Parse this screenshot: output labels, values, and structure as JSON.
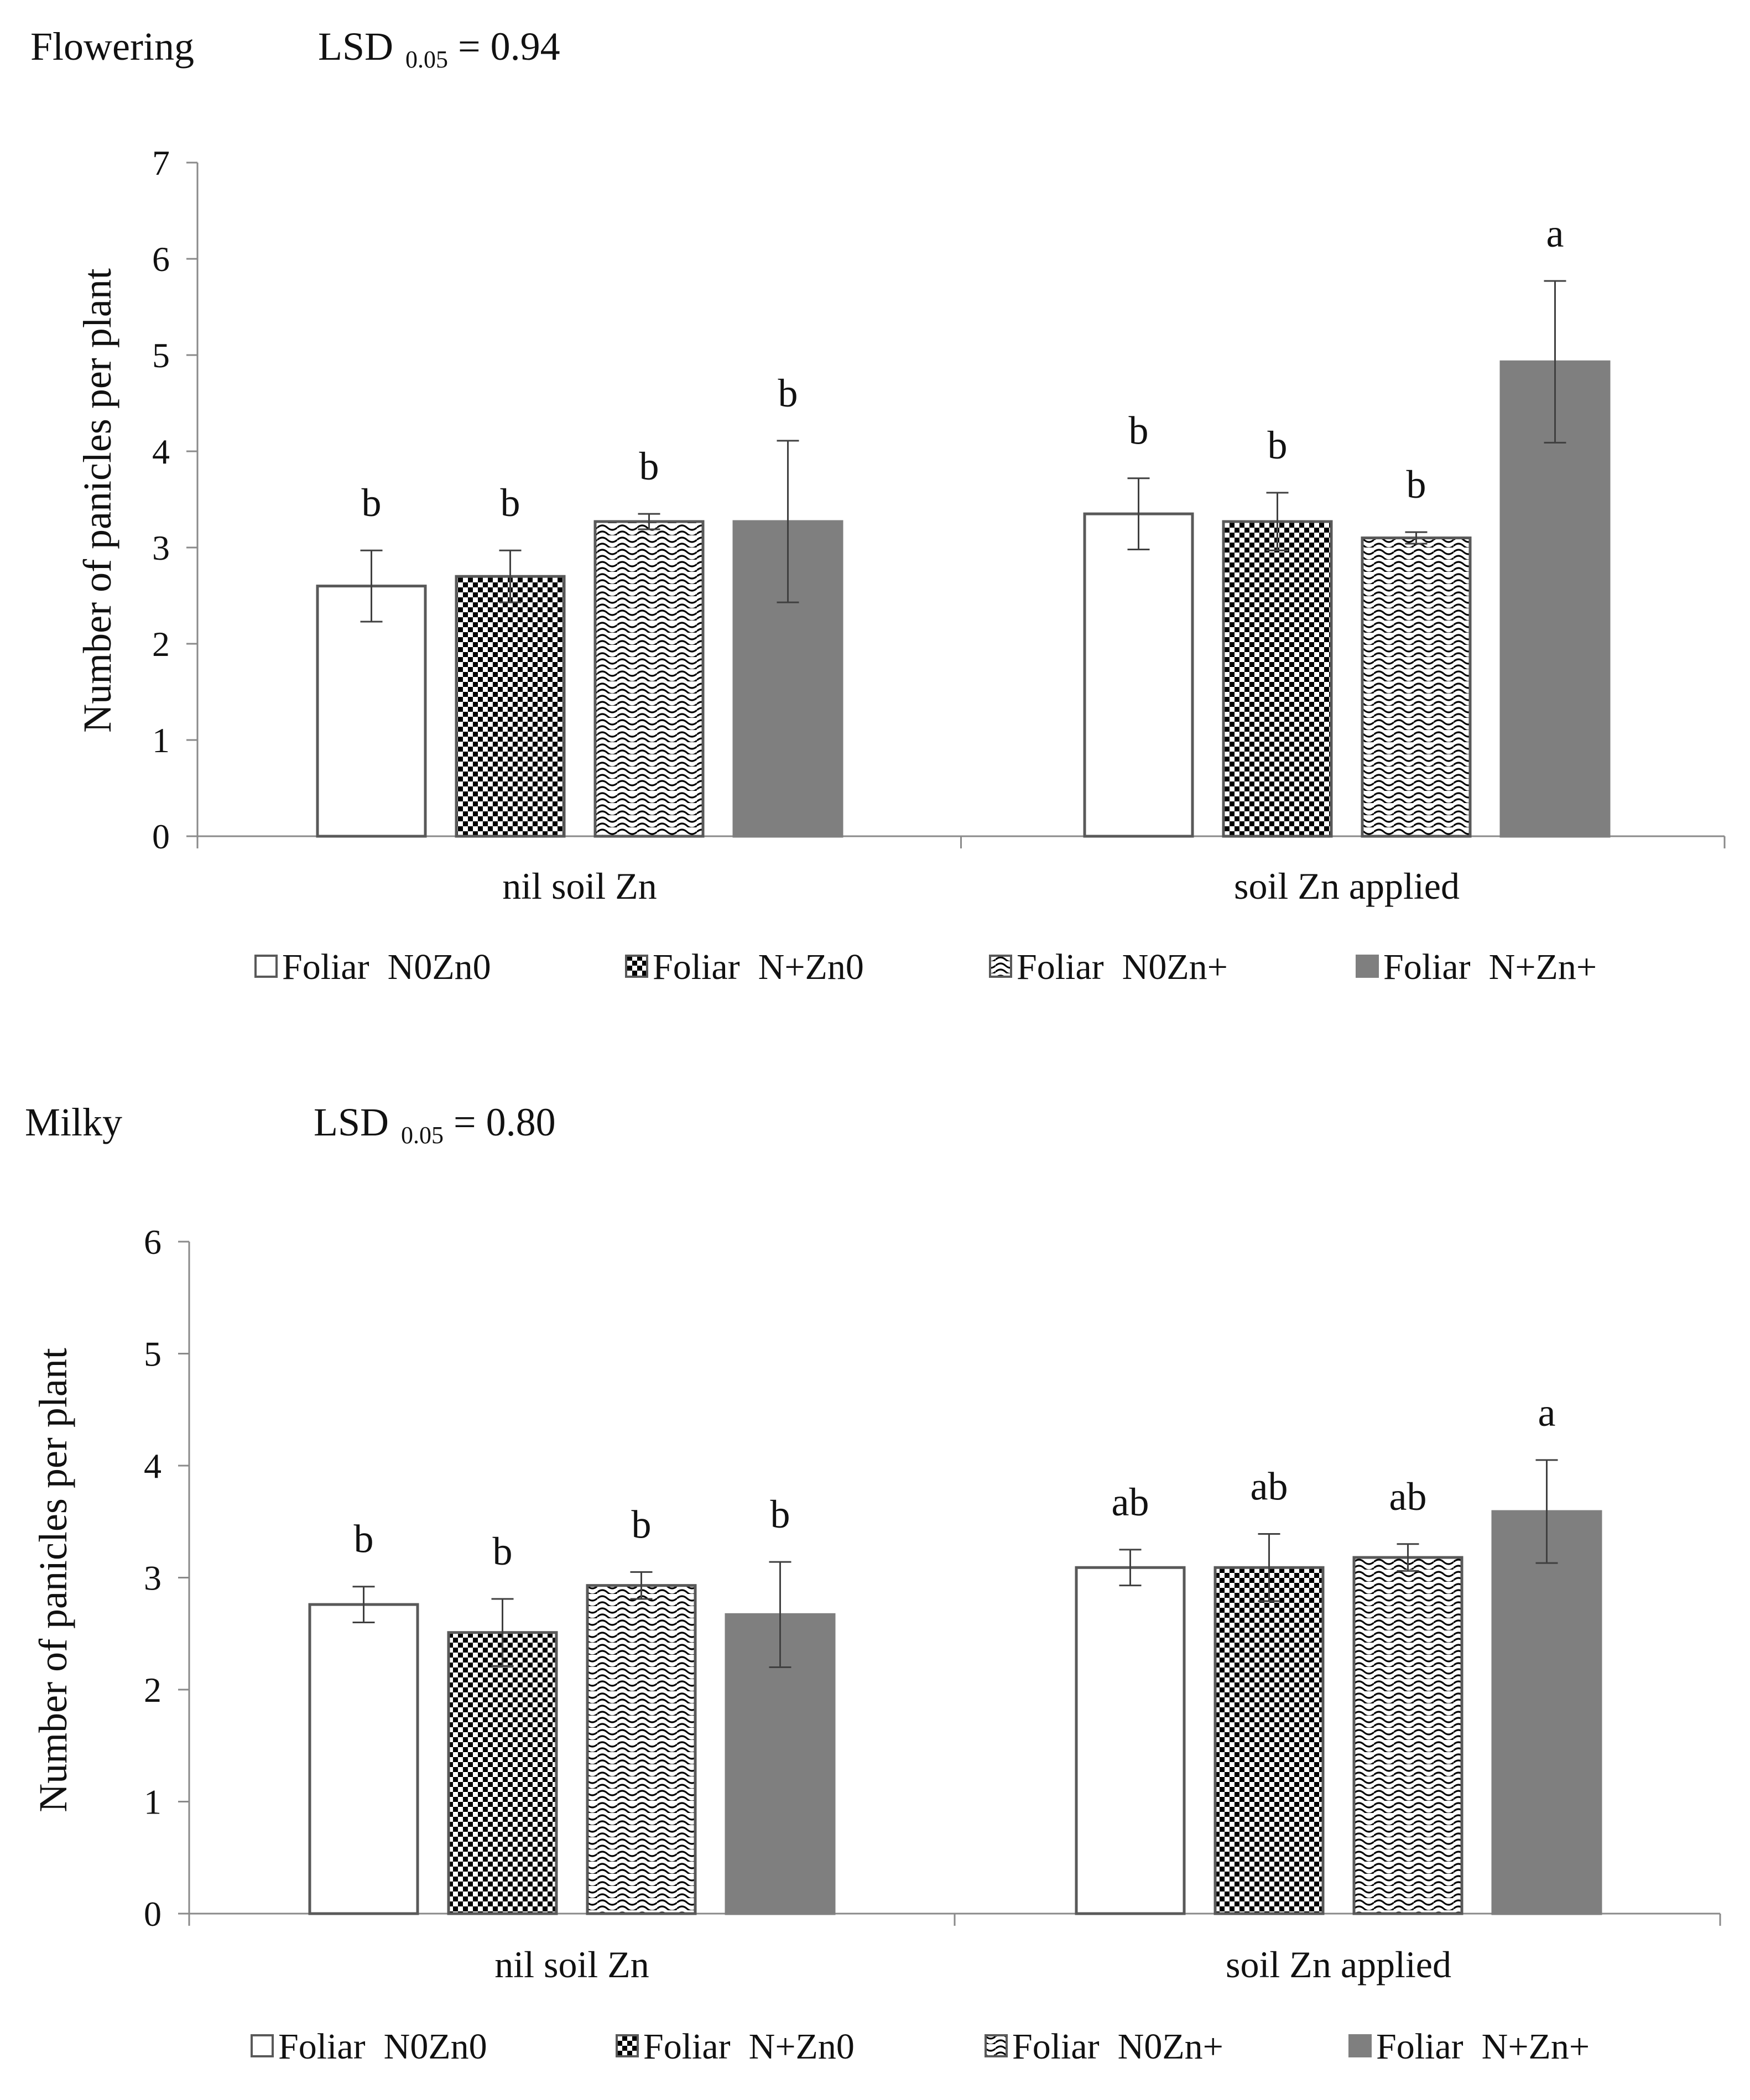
{
  "colors": {
    "axis": "#8a8a8a",
    "bar_outline": "#595959",
    "error_bar": "#404040",
    "solid_fill": "#7f7f7f",
    "pattern_ink": "#000000",
    "background": "#ffffff"
  },
  "chart_data": [
    {
      "type": "bar",
      "stage": "Flowering",
      "lsd_prefix": "LSD",
      "lsd_sub": "0.05",
      "lsd_suffix": "= 0.94",
      "ylabel": "Number  of panicles per plant",
      "ylim": [
        0,
        7
      ],
      "yticks": [
        "0",
        "1",
        "2",
        "3",
        "4",
        "5",
        "6",
        "7"
      ],
      "categories": [
        "nil soil Zn",
        "soil Zn applied"
      ],
      "series": [
        {
          "name": "Foliar  N0Zn0",
          "pattern": "empty",
          "values": [
            2.6,
            3.35
          ],
          "errors": [
            0.37,
            0.37
          ],
          "letters": [
            "b",
            "b"
          ]
        },
        {
          "name": "Foliar  N+Zn0",
          "pattern": "checker",
          "values": [
            2.7,
            3.27
          ],
          "errors": [
            0.27,
            0.3
          ],
          "letters": [
            "b",
            "b"
          ]
        },
        {
          "name": "Foliar  N0Zn+",
          "pattern": "wave",
          "values": [
            3.27,
            3.1
          ],
          "errors": [
            0.08,
            0.06
          ],
          "letters": [
            "b",
            "b"
          ]
        },
        {
          "name": "Foliar  N+Zn+",
          "pattern": "solid",
          "values": [
            3.27,
            4.93
          ],
          "errors": [
            0.84,
            0.84
          ],
          "letters": [
            "b",
            "a"
          ]
        }
      ]
    },
    {
      "type": "bar",
      "stage": "Milky",
      "lsd_prefix": "LSD",
      "lsd_sub": "0.05",
      "lsd_suffix": "= 0.80",
      "ylabel": "Number  of panicles per plant",
      "ylim": [
        0,
        6
      ],
      "yticks": [
        "0",
        "1",
        "2",
        "3",
        "4",
        "5",
        "6"
      ],
      "categories": [
        "nil soil Zn",
        "soil Zn applied"
      ],
      "series": [
        {
          "name": "Foliar  N0Zn0",
          "pattern": "empty",
          "values": [
            2.76,
            3.09
          ],
          "errors": [
            0.16,
            0.16
          ],
          "letters": [
            "b",
            "ab"
          ]
        },
        {
          "name": "Foliar  N+Zn0",
          "pattern": "checker",
          "values": [
            2.51,
            3.09
          ],
          "errors": [
            0.3,
            0.3
          ],
          "letters": [
            "b",
            "ab"
          ]
        },
        {
          "name": "Foliar  N0Zn+",
          "pattern": "wave",
          "values": [
            2.93,
            3.18
          ],
          "errors": [
            0.12,
            0.12
          ],
          "letters": [
            "b",
            "ab"
          ]
        },
        {
          "name": "Foliar  N+Zn+",
          "pattern": "solid",
          "values": [
            2.67,
            3.59
          ],
          "errors": [
            0.47,
            0.46
          ],
          "letters": [
            "b",
            "a"
          ]
        }
      ]
    }
  ]
}
